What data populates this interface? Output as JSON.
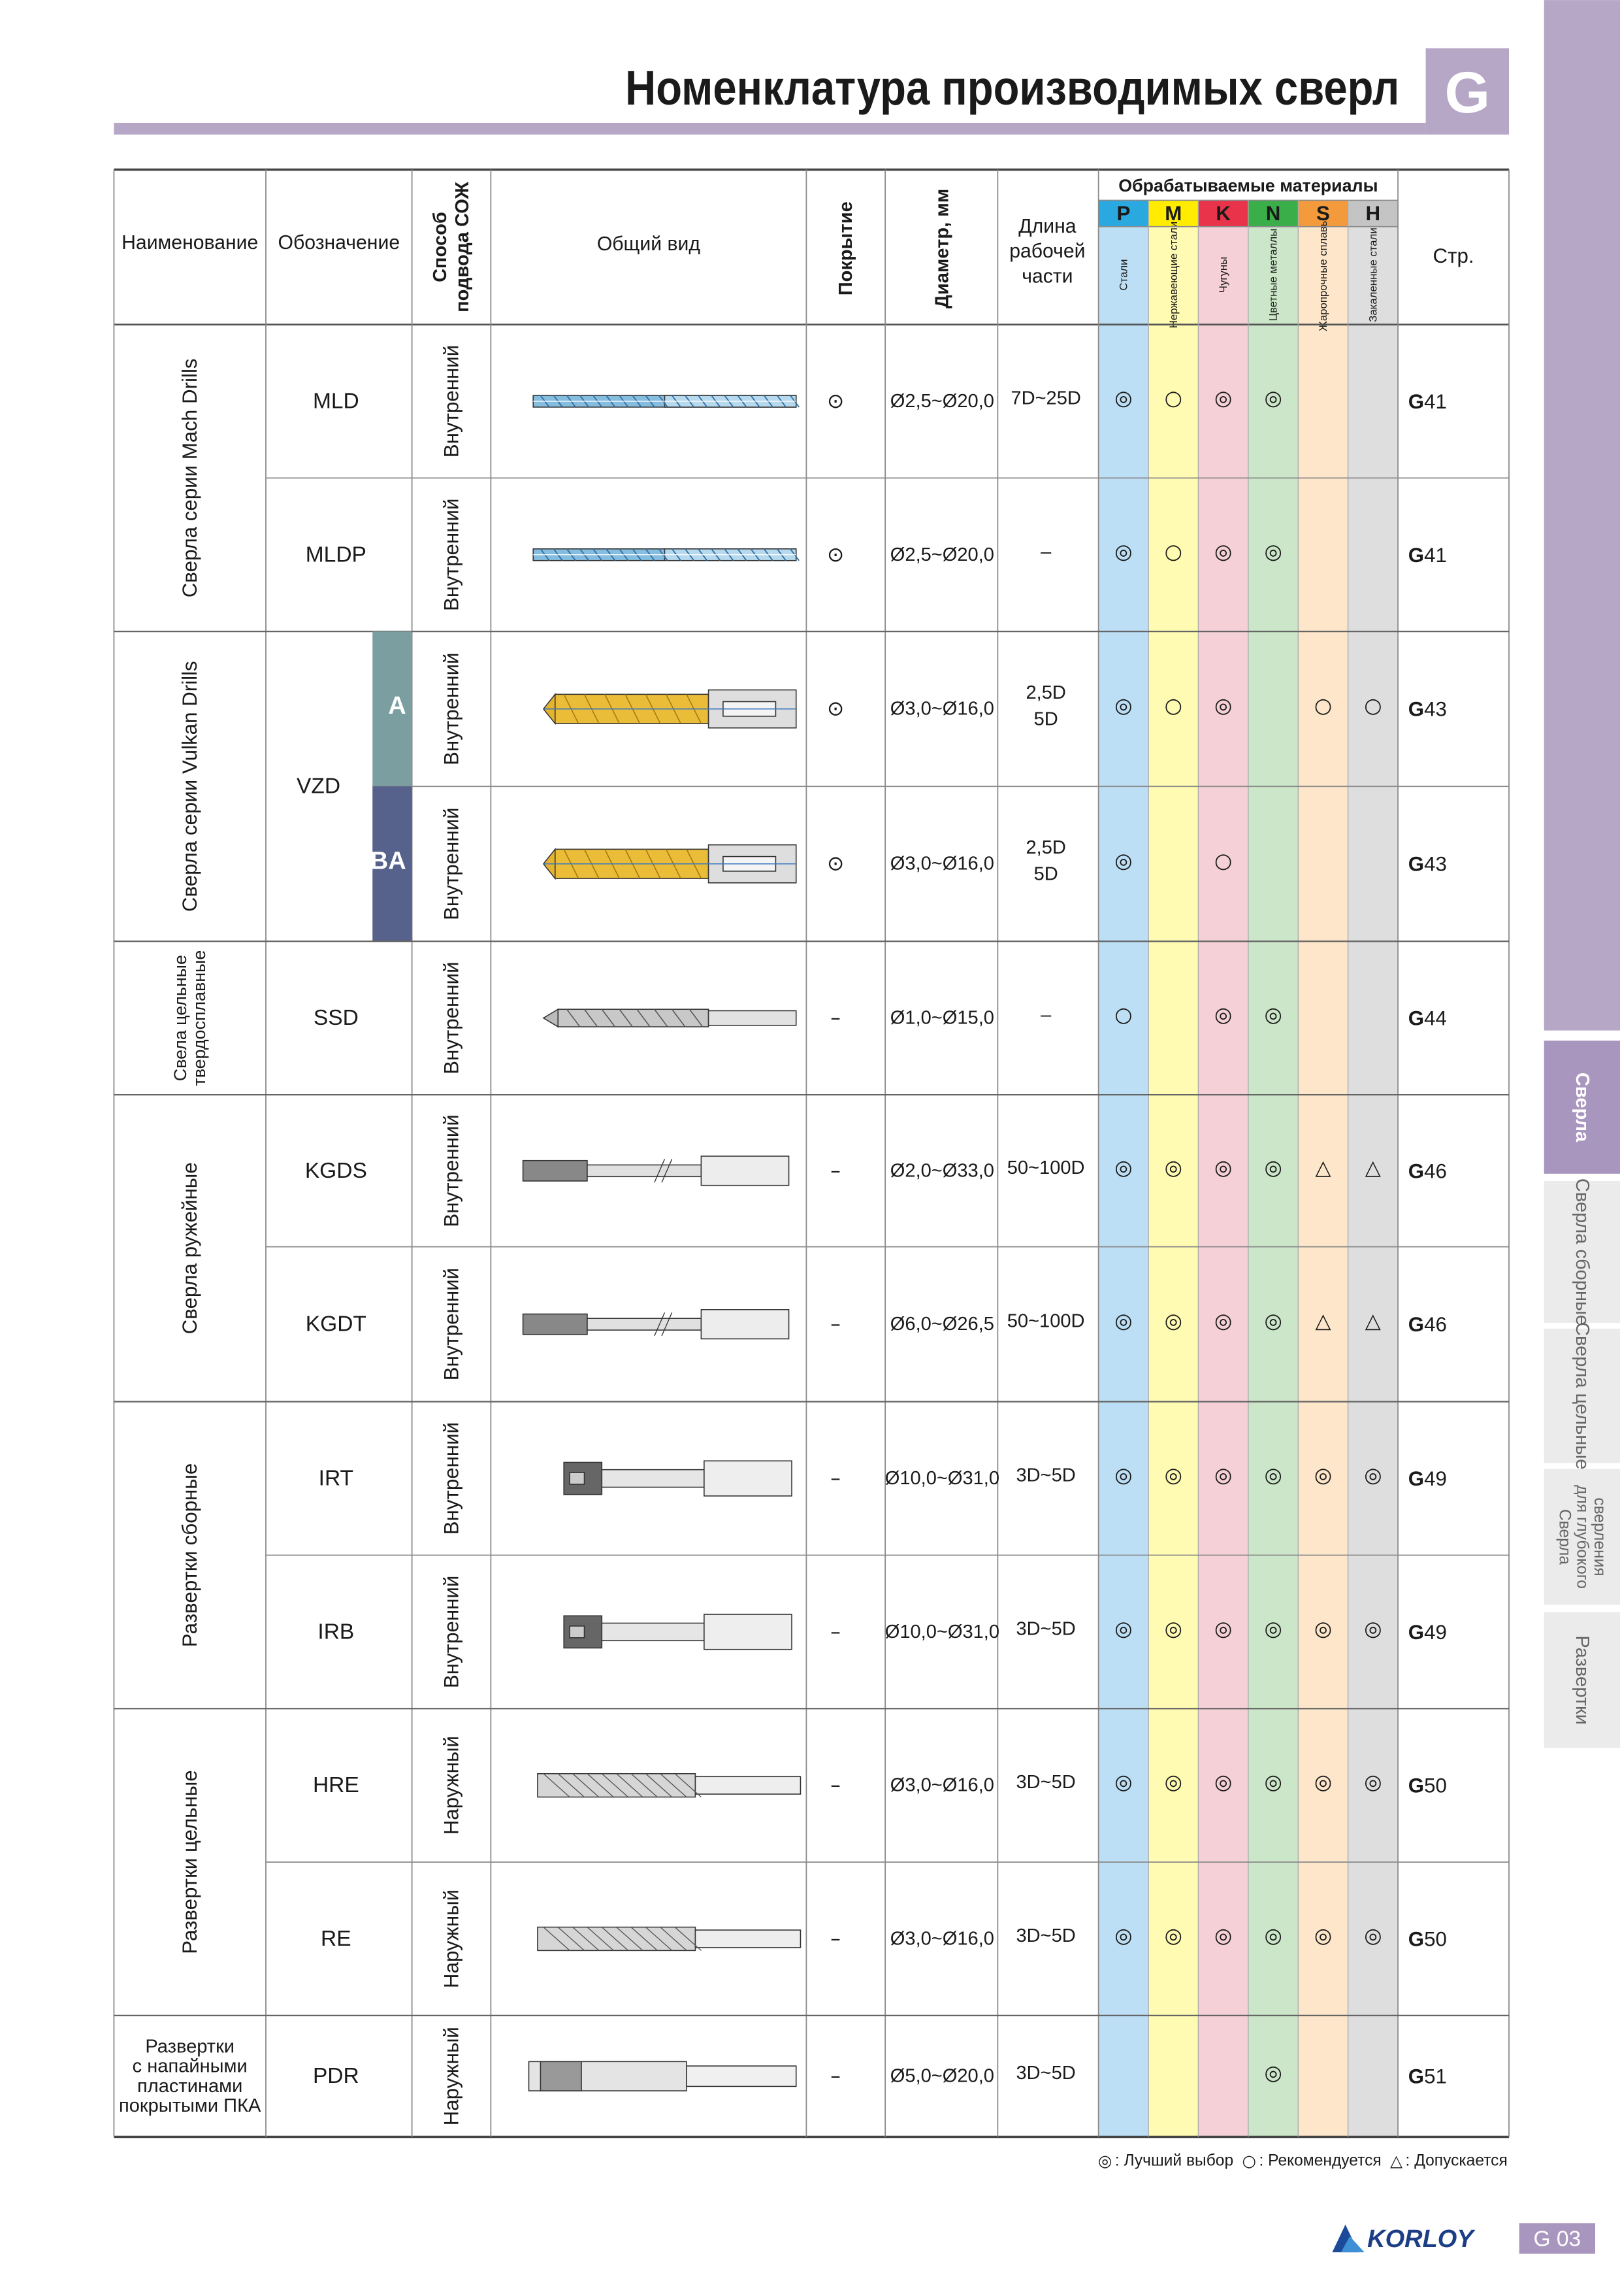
{
  "header": {
    "title": "Номенклатура производимых сверл",
    "badge": "G"
  },
  "table": {
    "headers": {
      "name": "Наименование",
      "designation": "Обозначение",
      "coolant": [
        "Способ",
        "подвода СОЖ"
      ],
      "view": "Общий вид",
      "coating": "Покрытие",
      "diameter": "Диаметр, мм",
      "length": [
        "Длина",
        "рабочей",
        "части"
      ],
      "materials": "Обрабатываемые материалы",
      "page": "Стр."
    },
    "materials": [
      {
        "code": "P",
        "label": "Стали",
        "color": "#2aa8e0",
        "bg": "#bcdff5"
      },
      {
        "code": "M",
        "label": "Нержавеющие стали",
        "color": "#ffec00",
        "bg": "#fffbb2"
      },
      {
        "code": "K",
        "label": "Чугуны",
        "color": "#e8334a",
        "bg": "#f5d0d7"
      },
      {
        "code": "N",
        "label": "Цветные металлы",
        "color": "#3aae49",
        "bg": "#cbe6c8"
      },
      {
        "code": "S",
        "label": "Жаропрочные сплавы",
        "color": "#f39a3c",
        "bg": "#fde6c9"
      },
      {
        "code": "H",
        "label": "Закаленные стали",
        "color": "#c4c4c4",
        "bg": "#dedede"
      }
    ],
    "groups": [
      {
        "name": [
          "Сверла серии Mach Drills"
        ],
        "vertical": true,
        "rows": [
          {
            "designation": "MLD",
            "coolant": "Внутренний",
            "coating": "⊙",
            "diameter": "Ø2,5~Ø20,0",
            "length": [
              "7D~25D"
            ],
            "materials": [
              "◎",
              "○",
              "◎",
              "◎",
              null,
              null
            ],
            "page": "G41"
          },
          {
            "designation": "MLDP",
            "coolant": "Внутренний",
            "coating": "⊙",
            "diameter": "Ø2,5~Ø20,0",
            "length": [
              "–"
            ],
            "materials": [
              "◎",
              "○",
              "◎",
              "◎",
              null,
              null
            ],
            "page": "G41"
          }
        ]
      },
      {
        "name": [
          "Сверла серии Vulkan Drills"
        ],
        "vertical": true,
        "designation": "VZD",
        "rows": [
          {
            "variant": "A",
            "variant_color": "#7b9fa1",
            "coolant": "Внутренний",
            "coating": "⊙",
            "diameter": "Ø3,0~Ø16,0",
            "length": [
              "2,5D",
              "5D"
            ],
            "materials": [
              "◎",
              "○",
              "◎",
              null,
              "○",
              "○"
            ],
            "page": "G43"
          },
          {
            "variant": "BA",
            "variant_color": "#56628b",
            "coolant": "Внутренний",
            "coating": "⊙",
            "diameter": "Ø3,0~Ø16,0",
            "length": [
              "2,5D",
              "5D"
            ],
            "materials": [
              "◎",
              null,
              "○",
              null,
              null,
              null
            ],
            "page": "G43"
          }
        ]
      },
      {
        "name": [
          "Свела цельные",
          "твердосплавные"
        ],
        "vertical": true,
        "rows": [
          {
            "designation": "SSD",
            "coolant": "Внутренний",
            "coating": "–",
            "diameter": "Ø1,0~Ø15,0",
            "length": [
              "–"
            ],
            "materials": [
              "○",
              null,
              "◎",
              "◎",
              null,
              null
            ],
            "page": "G44"
          }
        ]
      },
      {
        "name": [
          "Сверла ружейные"
        ],
        "vertical": true,
        "rows": [
          {
            "designation": "KGDS",
            "coolant": "Внутренний",
            "coating": "–",
            "diameter": "Ø2,0~Ø33,0",
            "length": [
              "50~100D"
            ],
            "materials": [
              "◎",
              "◎",
              "◎",
              "◎",
              "△",
              "△"
            ],
            "page": "G46"
          },
          {
            "designation": "KGDT",
            "coolant": "Внутренний",
            "coating": "–",
            "diameter": "Ø6,0~Ø26,5",
            "length": [
              "50~100D"
            ],
            "materials": [
              "◎",
              "◎",
              "◎",
              "◎",
              "△",
              "△"
            ],
            "page": "G46"
          }
        ]
      },
      {
        "name": [
          "Развертки сборные"
        ],
        "vertical": true,
        "rows": [
          {
            "designation": "IRT",
            "coolant": "Внутренний",
            "coating": "–",
            "diameter": "Ø10,0~Ø31,0",
            "length": [
              "3D~5D"
            ],
            "materials": [
              "◎",
              "◎",
              "◎",
              "◎",
              "◎",
              "◎"
            ],
            "page": "G49"
          },
          {
            "designation": "IRB",
            "coolant": "Внутренний",
            "coating": "–",
            "diameter": "Ø10,0~Ø31,0",
            "length": [
              "3D~5D"
            ],
            "materials": [
              "◎",
              "◎",
              "◎",
              "◎",
              "◎",
              "◎"
            ],
            "page": "G49"
          }
        ]
      },
      {
        "name": [
          "Развертки цельные"
        ],
        "vertical": true,
        "rows": [
          {
            "designation": "HRE",
            "coolant": "Наружный",
            "coating": "–",
            "diameter": "Ø3,0~Ø16,0",
            "length": [
              "3D~5D"
            ],
            "materials": [
              "◎",
              "◎",
              "◎",
              "◎",
              "◎",
              "◎"
            ],
            "page": "G50"
          },
          {
            "designation": "RE",
            "coolant": "Наружный",
            "coating": "–",
            "diameter": "Ø3,0~Ø16,0",
            "length": [
              "3D~5D"
            ],
            "materials": [
              "◎",
              "◎",
              "◎",
              "◎",
              "◎",
              "◎"
            ],
            "page": "G50"
          }
        ]
      },
      {
        "name": [
          "Развертки",
          "с напайными",
          "пластинами",
          "покрытыми ПКА"
        ],
        "vertical": false,
        "rows": [
          {
            "designation": "PDR",
            "coolant": "Наружный",
            "coating": "–",
            "diameter": "Ø5,0~Ø20,0",
            "length": [
              "3D~5D"
            ],
            "materials": [
              null,
              null,
              null,
              "◎",
              null,
              null
            ],
            "page": "G51"
          }
        ]
      }
    ]
  },
  "legend": [
    {
      "symbol": "◎",
      "label": ": Лучший выбор"
    },
    {
      "symbol": "○",
      "label": ": Рекомендуется"
    },
    {
      "symbol": "△",
      "label": ": Допускается"
    }
  ],
  "side_tabs": [
    {
      "lines": [
        "Сверла"
      ],
      "active": true
    },
    {
      "lines": [
        "Сверла сборные"
      ],
      "active": false
    },
    {
      "lines": [
        "Сверла цельные"
      ],
      "active": false
    },
    {
      "lines": [
        "Сверла",
        "для глубокого",
        "сверления"
      ],
      "active": false
    },
    {
      "lines": [
        "Развертки"
      ],
      "active": false
    }
  ],
  "footer": {
    "brand": "KORLOY",
    "page": "G 03"
  }
}
